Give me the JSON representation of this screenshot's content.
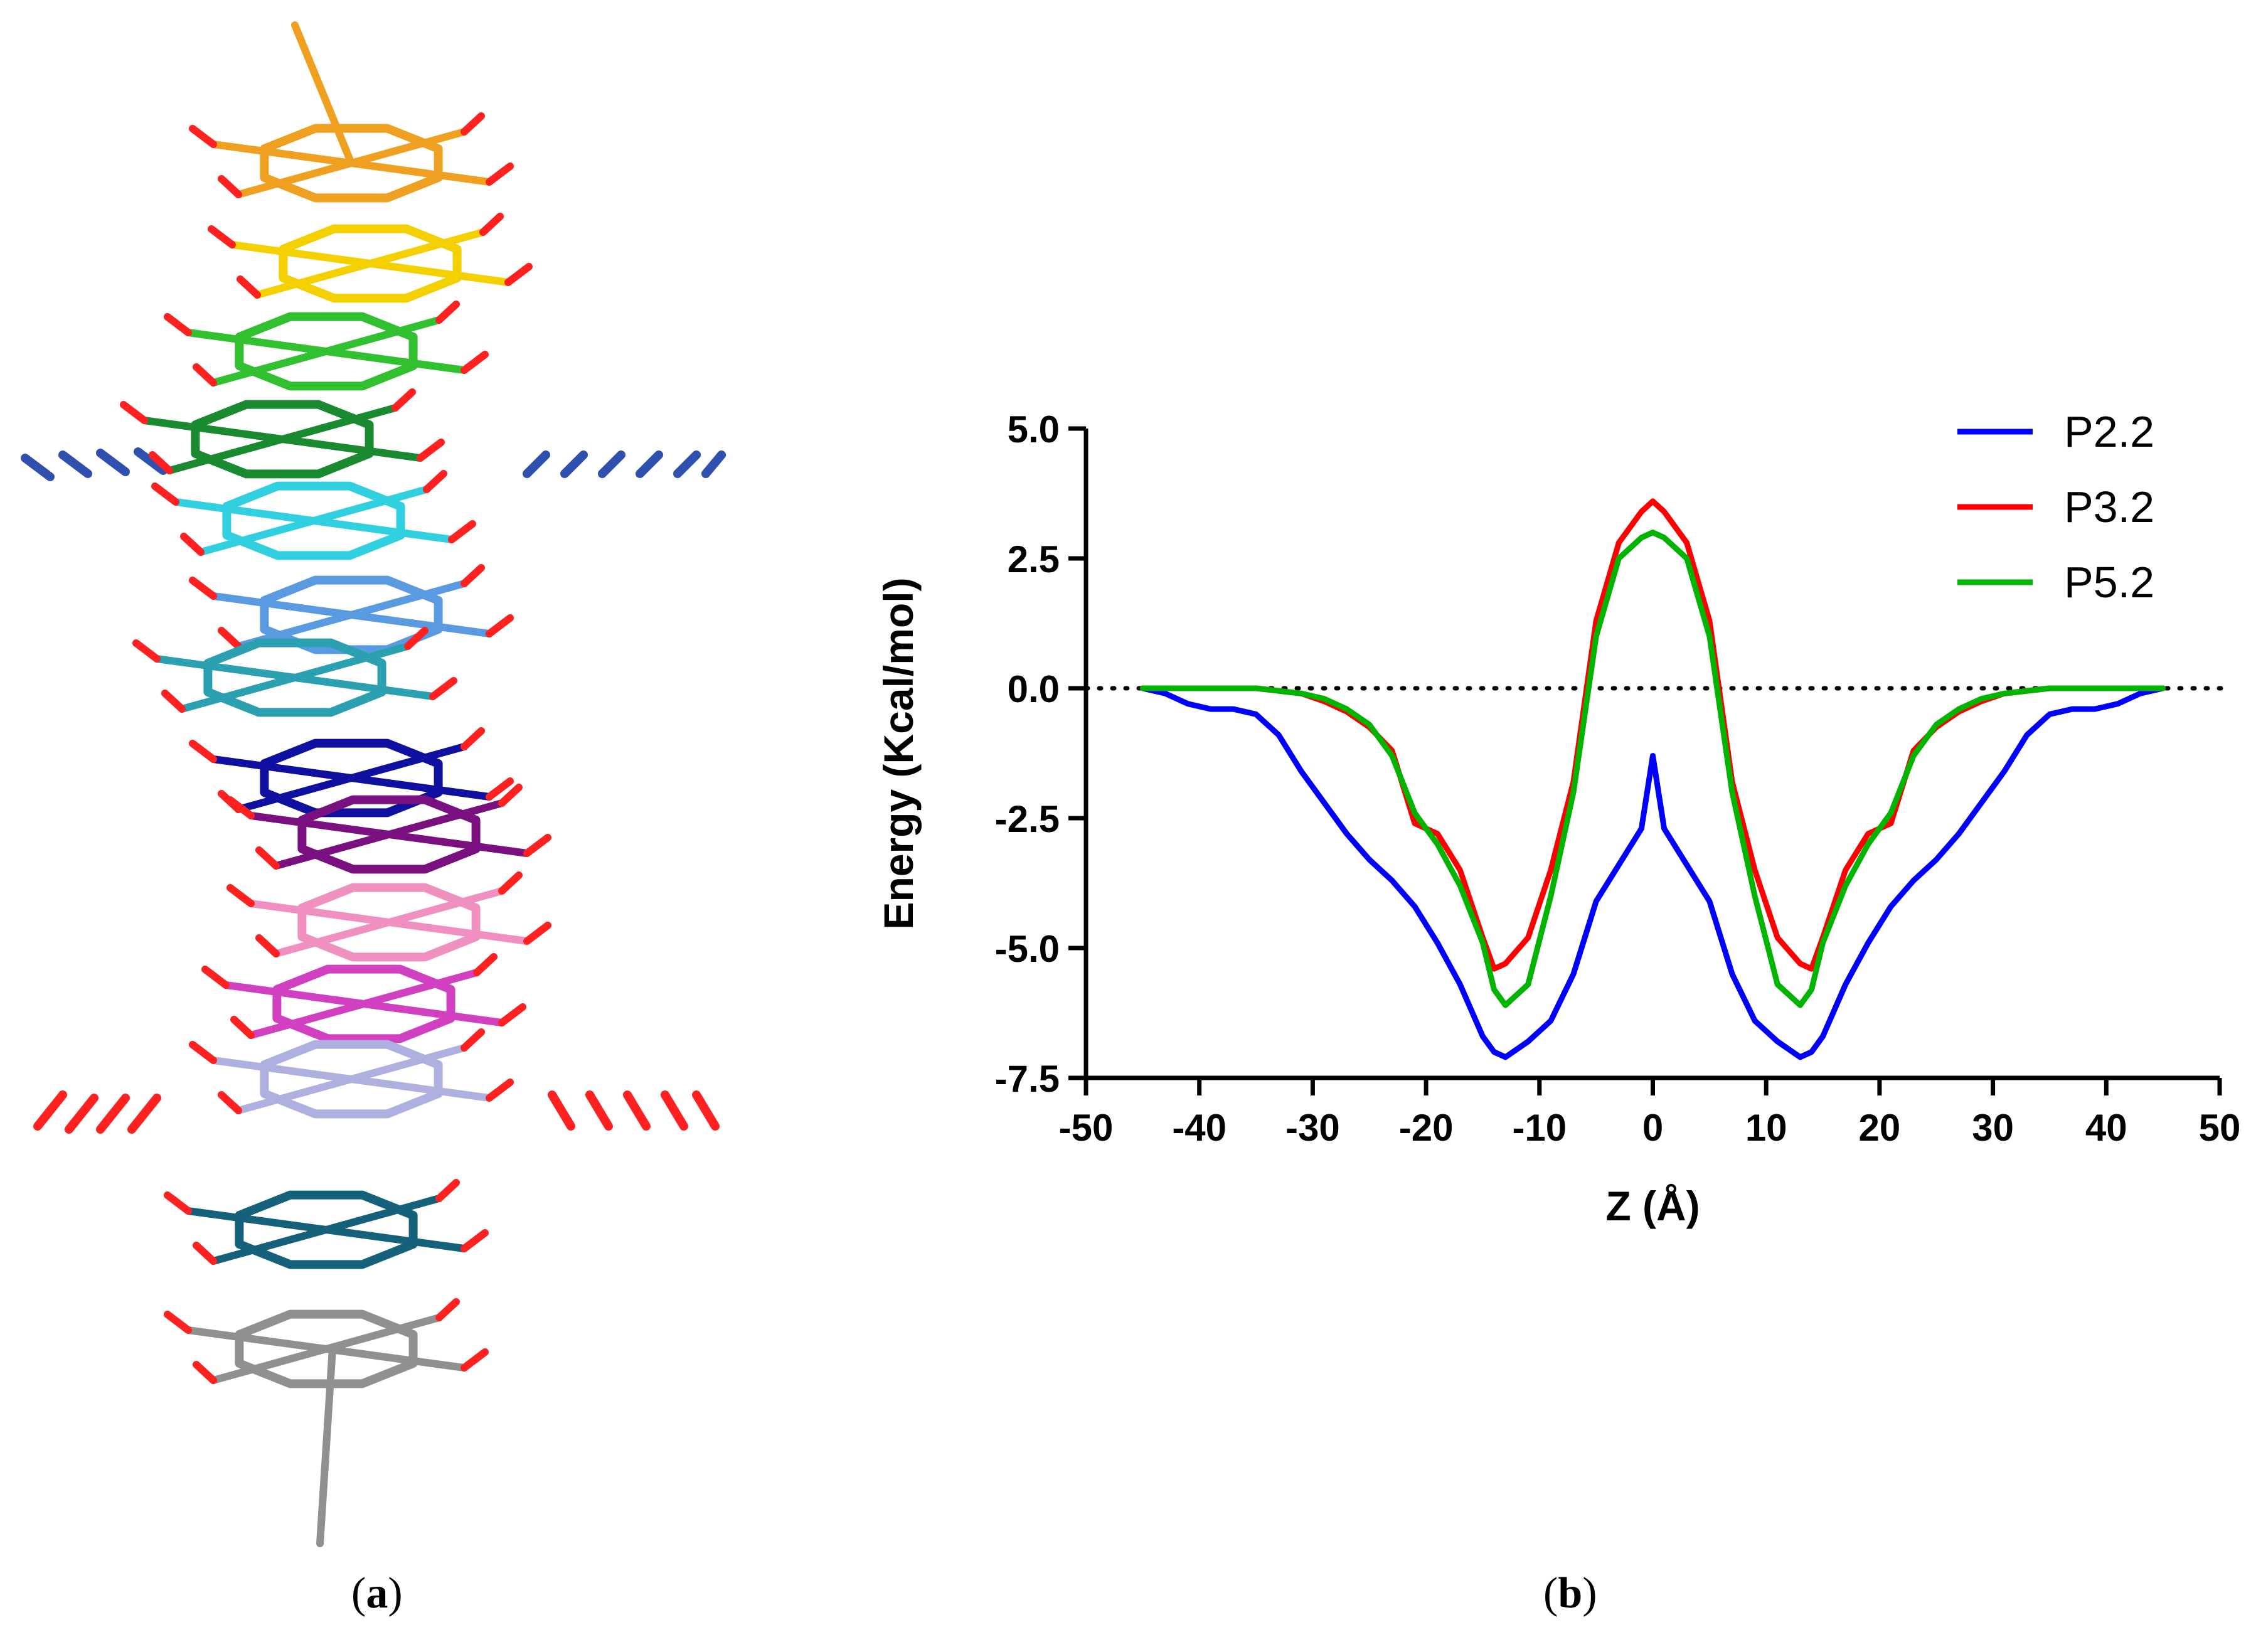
{
  "panels": {
    "a": {
      "label_open": "(",
      "label_letter": "a",
      "label_close": ")"
    },
    "b": {
      "label_open": "(",
      "label_letter": "b",
      "label_close": ")"
    }
  },
  "colors": {
    "P2.2": "#0000ff",
    "P3.2": "#ff0000",
    "P5.2": "#00b400",
    "axis": "#000000",
    "molecule_palette": [
      "#f0a020",
      "#f5d000",
      "#30c030",
      "#1a8a30",
      "#30d0e0",
      "#2aa0b0",
      "#5a9ae0",
      "#1010a0",
      "#7a1080",
      "#d040c0",
      "#f090c0",
      "#b0b0e0",
      "#c0c090",
      "#15607a",
      "#909090",
      "#ff2020",
      "#3050b0"
    ]
  },
  "chart_data": {
    "type": "line",
    "title": "",
    "xlabel": "Z (Å)",
    "ylabel": "Energy (Kcal/mol)",
    "xlim": [
      -50,
      50
    ],
    "ylim": [
      -7.5,
      5.0
    ],
    "xticks": [
      -50,
      -40,
      -30,
      -20,
      -10,
      0,
      10,
      20,
      30,
      40,
      50
    ],
    "yticks": [
      -7.5,
      -5.0,
      -2.5,
      0.0,
      2.5,
      5.0
    ],
    "ytick_labels": [
      "-7.5",
      "-5.0",
      "-2.5",
      "0.0",
      "2.5",
      "5.0"
    ],
    "reference_line": {
      "y": 0.0,
      "style": "dotted"
    },
    "legend_position": "top-right",
    "series": [
      {
        "name": "P2.2",
        "x": [
          -45,
          -43,
          -41,
          -39,
          -37,
          -35,
          -33,
          -31,
          -29,
          -27,
          -25,
          -23,
          -21,
          -19,
          -17,
          -15,
          -14,
          -13,
          -11,
          -9,
          -7,
          -5,
          -3,
          -1,
          0,
          1,
          3,
          5,
          7,
          9,
          11,
          13,
          14,
          15,
          17,
          19,
          21,
          23,
          25,
          27,
          29,
          31,
          33,
          35,
          37,
          39,
          41,
          43,
          45
        ],
        "y": [
          0.0,
          -0.1,
          -0.3,
          -0.4,
          -0.4,
          -0.5,
          -0.9,
          -1.6,
          -2.2,
          -2.8,
          -3.3,
          -3.7,
          -4.2,
          -4.9,
          -5.7,
          -6.7,
          -7.0,
          -7.1,
          -6.8,
          -6.4,
          -5.5,
          -4.1,
          -3.4,
          -2.7,
          -1.3,
          -2.7,
          -3.4,
          -4.1,
          -5.5,
          -6.4,
          -6.8,
          -7.1,
          -7.0,
          -6.7,
          -5.7,
          -4.9,
          -4.2,
          -3.7,
          -3.3,
          -2.8,
          -2.2,
          -1.6,
          -0.9,
          -0.5,
          -0.4,
          -0.4,
          -0.3,
          -0.1,
          0.0
        ]
      },
      {
        "name": "P3.2",
        "x": [
          -45,
          -40,
          -35,
          -33,
          -31,
          -29,
          -27,
          -25,
          -23,
          -21,
          -19,
          -17,
          -15,
          -14,
          -13,
          -11,
          -9,
          -7,
          -5,
          -3,
          -1,
          0,
          1,
          3,
          5,
          7,
          9,
          11,
          13,
          14,
          15,
          17,
          19,
          21,
          23,
          25,
          27,
          29,
          31,
          33,
          35,
          40,
          45
        ],
        "y": [
          0.0,
          0.0,
          0.0,
          -0.05,
          -0.1,
          -0.25,
          -0.45,
          -0.75,
          -1.2,
          -2.6,
          -2.8,
          -3.5,
          -4.8,
          -5.4,
          -5.3,
          -4.8,
          -3.5,
          -1.8,
          1.3,
          2.8,
          3.4,
          3.6,
          3.4,
          2.8,
          1.3,
          -1.8,
          -3.5,
          -4.8,
          -5.3,
          -5.4,
          -4.8,
          -3.5,
          -2.8,
          -2.6,
          -1.2,
          -0.75,
          -0.45,
          -0.25,
          -0.1,
          -0.05,
          0.0,
          0.0,
          0.0
        ]
      },
      {
        "name": "P5.2",
        "x": [
          -45,
          -40,
          -35,
          -33,
          -31,
          -29,
          -27,
          -25,
          -23,
          -21,
          -19,
          -17,
          -15,
          -14,
          -13,
          -11,
          -9,
          -7,
          -5,
          -3,
          -1,
          0,
          1,
          3,
          5,
          7,
          9,
          11,
          13,
          14,
          15,
          17,
          19,
          21,
          23,
          25,
          27,
          29,
          31,
          33,
          35,
          40,
          45
        ],
        "y": [
          0.0,
          0.0,
          0.0,
          -0.05,
          -0.1,
          -0.2,
          -0.4,
          -0.7,
          -1.3,
          -2.4,
          -3.0,
          -3.8,
          -4.9,
          -5.8,
          -6.1,
          -5.7,
          -4.0,
          -2.0,
          1.0,
          2.5,
          2.9,
          3.0,
          2.9,
          2.5,
          1.0,
          -2.0,
          -4.0,
          -5.7,
          -6.1,
          -5.8,
          -4.9,
          -3.8,
          -3.0,
          -2.4,
          -1.3,
          -0.7,
          -0.4,
          -0.2,
          -0.1,
          -0.05,
          0.0,
          0.0,
          0.0
        ]
      }
    ]
  }
}
